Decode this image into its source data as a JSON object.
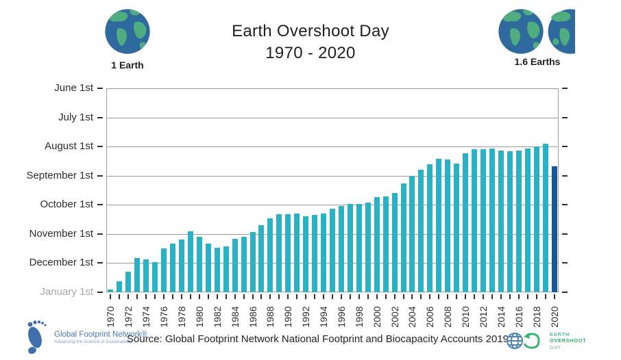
{
  "header": {
    "title_line1": "Earth Overshoot Day",
    "title_line2": "1970 - 2020",
    "left_badge": {
      "label": "1 Earth"
    },
    "right_badge": {
      "label": "1.6 Earths",
      "earth_fraction_shown": 0.6
    }
  },
  "footer": {
    "source_text": "Source: Global Footprint Network National Footprint and Biocapacity Accounts 2019",
    "gfn_logo": {
      "name": "Global Footprint Network®",
      "tagline": "Advancing the Science of Sustainability"
    },
    "eod_logo": {
      "line1": "EARTH",
      "line2": "OVERSHOOT",
      "line3": "DAY"
    }
  },
  "chart_data": {
    "type": "bar",
    "title": "Earth Overshoot Day",
    "subtitle": "1970 - 2020",
    "y_axis": {
      "labels": [
        "June 1st",
        "July 1st",
        "August 1st",
        "September 1st",
        "October 1st",
        "November 1st",
        "December 1st",
        "January 1st"
      ],
      "inverted": true,
      "muted_label": "January 1st",
      "grid": true
    },
    "x_axis": {
      "range": [
        1970,
        2020
      ],
      "tick_every_years": 1,
      "label_every_years": 2,
      "label_rotation_deg": -90
    },
    "legend": "none",
    "colors": {
      "bar": "#29b2c4",
      "bar_highlight": "#16579c",
      "highlight_year": 2020,
      "gridline": "#9c9c9c"
    },
    "points": [
      {
        "year": 1970,
        "date": "Dec 29",
        "month": 12,
        "day": 29
      },
      {
        "year": 1971,
        "date": "Dec 20",
        "month": 12,
        "day": 20
      },
      {
        "year": 1972,
        "date": "Dec 10",
        "month": 12,
        "day": 10
      },
      {
        "year": 1973,
        "date": "Nov 26",
        "month": 11,
        "day": 26
      },
      {
        "year": 1974,
        "date": "Nov 27",
        "month": 11,
        "day": 27
      },
      {
        "year": 1975,
        "date": "Nov 30",
        "month": 11,
        "day": 30
      },
      {
        "year": 1976,
        "date": "Nov 16",
        "month": 11,
        "day": 16
      },
      {
        "year": 1977,
        "date": "Nov 11",
        "month": 11,
        "day": 11
      },
      {
        "year": 1978,
        "date": "Nov 7",
        "month": 11,
        "day": 7
      },
      {
        "year": 1979,
        "date": "Oct 29",
        "month": 10,
        "day": 29
      },
      {
        "year": 1980,
        "date": "Nov 4",
        "month": 11,
        "day": 4
      },
      {
        "year": 1981,
        "date": "Nov 11",
        "month": 11,
        "day": 11
      },
      {
        "year": 1982,
        "date": "Nov 15",
        "month": 11,
        "day": 15
      },
      {
        "year": 1983,
        "date": "Nov 14",
        "month": 11,
        "day": 14
      },
      {
        "year": 1984,
        "date": "Nov 6",
        "month": 11,
        "day": 6
      },
      {
        "year": 1985,
        "date": "Nov 4",
        "month": 11,
        "day": 4
      },
      {
        "year": 1986,
        "date": "Oct 30",
        "month": 10,
        "day": 30
      },
      {
        "year": 1987,
        "date": "Oct 23",
        "month": 10,
        "day": 23
      },
      {
        "year": 1988,
        "date": "Oct 15",
        "month": 10,
        "day": 15
      },
      {
        "year": 1989,
        "date": "Oct 11",
        "month": 10,
        "day": 11
      },
      {
        "year": 1990,
        "date": "Oct 11",
        "month": 10,
        "day": 11
      },
      {
        "year": 1991,
        "date": "Oct 10",
        "month": 10,
        "day": 10
      },
      {
        "year": 1992,
        "date": "Oct 13",
        "month": 10,
        "day": 13
      },
      {
        "year": 1993,
        "date": "Oct 12",
        "month": 10,
        "day": 12
      },
      {
        "year": 1994,
        "date": "Oct 10",
        "month": 10,
        "day": 10
      },
      {
        "year": 1995,
        "date": "Oct 5",
        "month": 10,
        "day": 5
      },
      {
        "year": 1996,
        "date": "Oct 2",
        "month": 10,
        "day": 2
      },
      {
        "year": 1997,
        "date": "Sep 30",
        "month": 9,
        "day": 30
      },
      {
        "year": 1998,
        "date": "Sep 30",
        "month": 9,
        "day": 30
      },
      {
        "year": 1999,
        "date": "Sep 29",
        "month": 9,
        "day": 29
      },
      {
        "year": 2000,
        "date": "Sep 23",
        "month": 9,
        "day": 23
      },
      {
        "year": 2001,
        "date": "Sep 22",
        "month": 9,
        "day": 22
      },
      {
        "year": 2002,
        "date": "Sep 19",
        "month": 9,
        "day": 19
      },
      {
        "year": 2003,
        "date": "Sep 9",
        "month": 9,
        "day": 9
      },
      {
        "year": 2004,
        "date": "Sep 1",
        "month": 9,
        "day": 1
      },
      {
        "year": 2005,
        "date": "Aug 26",
        "month": 8,
        "day": 26
      },
      {
        "year": 2006,
        "date": "Aug 20",
        "month": 8,
        "day": 20
      },
      {
        "year": 2007,
        "date": "Aug 14",
        "month": 8,
        "day": 14
      },
      {
        "year": 2008,
        "date": "Aug 15",
        "month": 8,
        "day": 15
      },
      {
        "year": 2009,
        "date": "Aug 19",
        "month": 8,
        "day": 19
      },
      {
        "year": 2010,
        "date": "Aug 8",
        "month": 8,
        "day": 8
      },
      {
        "year": 2011,
        "date": "Aug 4",
        "month": 8,
        "day": 4
      },
      {
        "year": 2012,
        "date": "Aug 4",
        "month": 8,
        "day": 4
      },
      {
        "year": 2013,
        "date": "Aug 3",
        "month": 8,
        "day": 3
      },
      {
        "year": 2014,
        "date": "Aug 5",
        "month": 8,
        "day": 5
      },
      {
        "year": 2015,
        "date": "Aug 6",
        "month": 8,
        "day": 6
      },
      {
        "year": 2016,
        "date": "Aug 5",
        "month": 8,
        "day": 5
      },
      {
        "year": 2017,
        "date": "Aug 3",
        "month": 8,
        "day": 3
      },
      {
        "year": 2018,
        "date": "Aug 1",
        "month": 8,
        "day": 1
      },
      {
        "year": 2019,
        "date": "Jul 29",
        "month": 7,
        "day": 29
      },
      {
        "year": 2020,
        "date": "Aug 22",
        "month": 8,
        "day": 22
      }
    ]
  }
}
